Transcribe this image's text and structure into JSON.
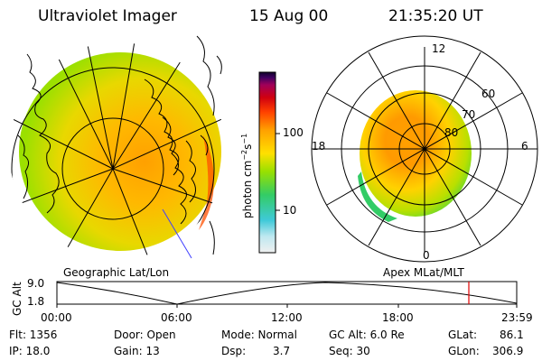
{
  "header": {
    "title": "Ultraviolet Imager",
    "date": "15 Aug 00",
    "time": "21:35:20 UT"
  },
  "colorbar": {
    "label_unit_prefix": "photon cm",
    "label_exp1": "−2",
    "label_mid": "s",
    "label_exp2": "−1",
    "ticks": [
      {
        "label": "100",
        "value": 100
      },
      {
        "label": "10",
        "value": 10
      }
    ],
    "colors": [
      "#f0f0f0",
      "#bfe8f0",
      "#3fc9d8",
      "#33cc66",
      "#99e000",
      "#ffe000",
      "#ffa000",
      "#ff4000",
      "#d00010",
      "#a0005a",
      "#400060",
      "#10002a"
    ]
  },
  "left_map": {
    "label": "Geographic Lat/Lon"
  },
  "right_map": {
    "label": "Apex MLat/MLT",
    "ring_labels": [
      "60",
      "70",
      "80"
    ],
    "mlt_labels": {
      "top": "12",
      "left": "18",
      "right": "6",
      "bottom": "0"
    }
  },
  "timeline": {
    "ylabel": "GC Alt",
    "y_ticks": [
      "9.0",
      "1.8"
    ],
    "x_ticks": [
      "00:00",
      "06:00",
      "12:00",
      "18:00",
      "23:59"
    ],
    "marker_color": "#e00000"
  },
  "info": {
    "flt": "Flt: 1356",
    "ip": "IP: 18.0",
    "door": "Door: Open",
    "gain": "Gain: 13",
    "mode": "Mode: Normal",
    "dsp": "Dsp:",
    "dsp_val": "3.7",
    "gcalt": "GC Alt: 6.0 Re",
    "seq": "Seq: 30",
    "glat": "GLat:",
    "glat_val": "86.1",
    "glon": "GLon:",
    "glon_val": "306.9"
  }
}
